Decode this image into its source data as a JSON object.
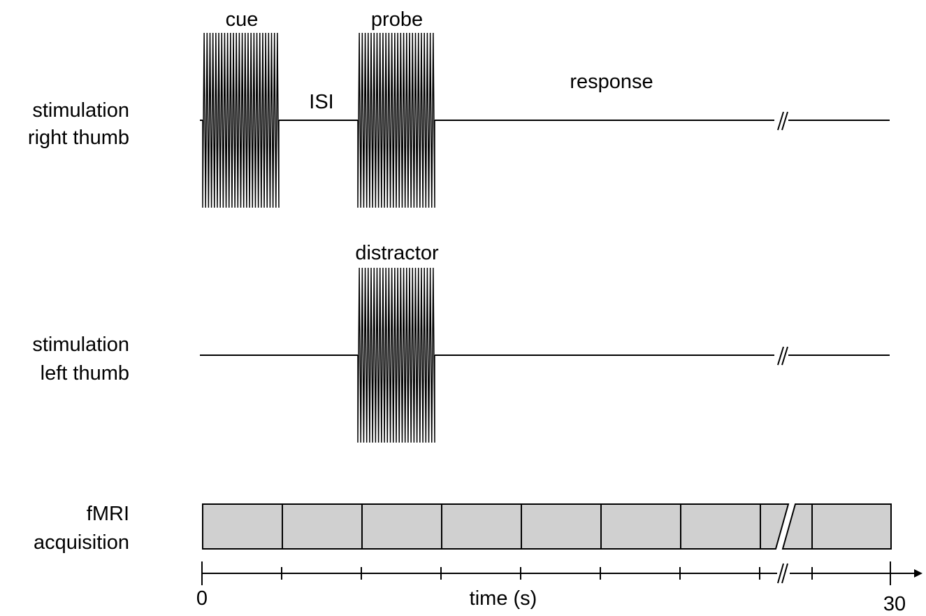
{
  "row_labels": {
    "right_line1": "stimulation",
    "right_line2": "right thumb",
    "left_line1": "stimulation",
    "left_line2": "left thumb",
    "fmri_line1": "fMRI",
    "fmri_line2": "acquisition"
  },
  "event_labels": {
    "cue": "cue",
    "isi": "ISI",
    "probe": "probe",
    "response": "response",
    "distractor": "distractor"
  },
  "axis": {
    "label": "time (s)",
    "start": "0",
    "end": "30"
  },
  "colors": {
    "acquisition_fill": "#d0d0d0",
    "line": "#000000"
  }
}
